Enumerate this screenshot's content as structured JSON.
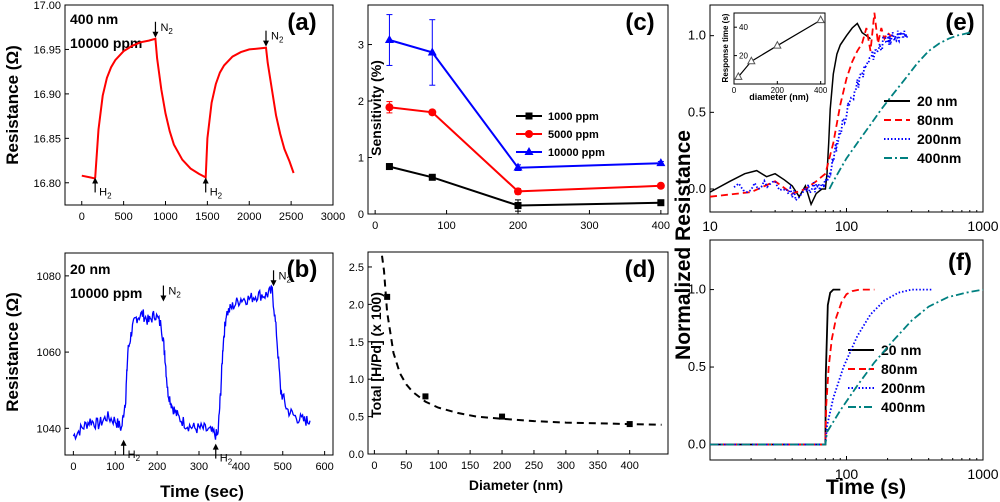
{
  "figure_description": "Six-panel figure (a)-(f): Pd film resistance transients, sensitivity, hydrogen uptake and response-time analysis",
  "chart_data": [
    {
      "panel": "(a)",
      "type": "line",
      "ylabel": "Resistance (Ω)",
      "xlabel": "",
      "xlim": [
        -200,
        3000
      ],
      "ylim": [
        16.775,
        17.0
      ],
      "xticks": [
        0,
        500,
        1000,
        1500,
        2000,
        2500,
        3000
      ],
      "yticks": [
        16.8,
        16.85,
        16.9,
        16.95,
        17.0
      ],
      "ytick_labels": [
        "16.80",
        "16.85",
        "16.90",
        "16.95",
        "17.00"
      ],
      "annotations": [
        "400 nm",
        "10000 ppm"
      ],
      "markers": [
        {
          "label": "H",
          "sub": "2",
          "x": 160,
          "y": 16.806,
          "dir": "up"
        },
        {
          "label": "N",
          "sub": "2",
          "x": 880,
          "y": 16.962,
          "dir": "down"
        },
        {
          "label": "H",
          "sub": "2",
          "x": 1480,
          "y": 16.806,
          "dir": "up"
        },
        {
          "label": "N",
          "sub": "2",
          "x": 2200,
          "y": 16.952,
          "dir": "down"
        }
      ],
      "series": [
        {
          "name": "400 nm, 10000 ppm",
          "color": "#ff0000",
          "x": [
            0,
            100,
            150,
            160,
            200,
            250,
            300,
            350,
            400,
            500,
            600,
            700,
            800,
            880,
            900,
            950,
            1000,
            1050,
            1100,
            1200,
            1300,
            1400,
            1480,
            1500,
            1550,
            1600,
            1650,
            1700,
            1800,
            1900,
            2000,
            2100,
            2200,
            2220,
            2270,
            2320,
            2370,
            2420,
            2480,
            2530
          ],
          "y": [
            16.808,
            16.806,
            16.805,
            16.806,
            16.86,
            16.898,
            16.918,
            16.93,
            16.938,
            16.948,
            16.954,
            16.958,
            16.96,
            16.962,
            16.94,
            16.905,
            16.878,
            16.858,
            16.843,
            16.826,
            16.816,
            16.81,
            16.806,
            16.85,
            16.89,
            16.911,
            16.924,
            16.932,
            16.942,
            16.947,
            16.95,
            16.951,
            16.952,
            16.935,
            16.905,
            16.876,
            16.855,
            16.838,
            16.824,
            16.811
          ]
        }
      ]
    },
    {
      "panel": "(b)",
      "type": "line",
      "ylabel": "Resistance (Ω)",
      "xlabel": "Time (sec)",
      "xlim": [
        -20,
        620
      ],
      "ylim": [
        1033,
        1086
      ],
      "xticks": [
        0,
        100,
        200,
        300,
        400,
        500,
        600
      ],
      "yticks": [
        1040,
        1060,
        1080
      ],
      "annotations": [
        "20 nm",
        "10000 ppm"
      ],
      "markers": [
        {
          "label": "H",
          "sub": "2",
          "x": 120,
          "y": 1037,
          "dir": "up"
        },
        {
          "label": "N",
          "sub": "2",
          "x": 215,
          "y": 1073,
          "dir": "down"
        },
        {
          "label": "H",
          "sub": "2",
          "x": 340,
          "y": 1036,
          "dir": "up"
        },
        {
          "label": "N",
          "sub": "2",
          "x": 478,
          "y": 1077,
          "dir": "down"
        }
      ],
      "series": [
        {
          "name": "20 nm, 10000 ppm",
          "color": "#0000ff",
          "x": [
            0,
            20,
            40,
            60,
            80,
            100,
            115,
            125,
            130,
            140,
            150,
            165,
            180,
            195,
            210,
            218,
            225,
            235,
            250,
            270,
            290,
            310,
            330,
            345,
            352,
            358,
            365,
            380,
            400,
            420,
            440,
            460,
            475,
            485,
            495,
            510,
            530,
            550,
            565
          ],
          "y": [
            1038,
            1040,
            1042,
            1041,
            1043,
            1042,
            1040,
            1048,
            1060,
            1066,
            1069,
            1070,
            1068,
            1070,
            1067,
            1060,
            1050,
            1046,
            1043,
            1041,
            1040,
            1040,
            1039,
            1038,
            1050,
            1063,
            1070,
            1072,
            1074,
            1074,
            1075,
            1075,
            1076,
            1065,
            1050,
            1045,
            1043,
            1042,
            1042
          ]
        }
      ]
    },
    {
      "panel": "(c)",
      "type": "line",
      "ylabel": "Sensitivity (%)",
      "xlabel": "",
      "xlim": [
        -10,
        410
      ],
      "ylim": [
        0,
        3.7
      ],
      "xticks": [
        0,
        100,
        200,
        300,
        400
      ],
      "yticks": [
        0,
        1,
        2,
        3
      ],
      "series": [
        {
          "name": "1000 ppm",
          "color": "#000000",
          "marker": "square",
          "x": [
            20,
            80,
            200,
            400
          ],
          "y": [
            0.84,
            0.65,
            0.15,
            0.2
          ],
          "err": [
            0.05,
            0.04,
            0.1,
            0.02
          ]
        },
        {
          "name": "5000 ppm",
          "color": "#ff0000",
          "marker": "circle",
          "x": [
            20,
            80,
            200,
            400
          ],
          "y": [
            1.89,
            1.8,
            0.4,
            0.5
          ],
          "err": [
            0.1,
            0.04,
            0.05,
            0.02
          ]
        },
        {
          "name": "10000 ppm",
          "color": "#0000ff",
          "marker": "triangle",
          "x": [
            20,
            80,
            200,
            400
          ],
          "y": [
            3.08,
            2.86,
            0.82,
            0.9
          ],
          "err": [
            0.45,
            0.58,
            0.05,
            0.03
          ]
        }
      ]
    },
    {
      "panel": "(d)",
      "type": "scatter",
      "ylabel": "Total [H/Pd] (x 100)",
      "xlabel": "Diameter (nm)",
      "xlim": [
        -10,
        460
      ],
      "ylim": [
        0,
        2.7
      ],
      "xticks": [
        0,
        50,
        100,
        150,
        200,
        250,
        300,
        350,
        400
      ],
      "yticks": [
        0.0,
        0.5,
        1.0,
        1.5,
        2.0,
        2.5
      ],
      "ytick_labels": [
        "0.0",
        "0.5",
        "1.0",
        "1.5",
        "2.0",
        "2.5"
      ],
      "points": {
        "x": [
          20,
          80,
          200,
          400
        ],
        "y": [
          2.1,
          0.77,
          0.5,
          0.4
        ]
      },
      "fit_curve": {
        "x": [
          12,
          15,
          20,
          30,
          40,
          50,
          60,
          80,
          100,
          130,
          160,
          200,
          250,
          300,
          350,
          400,
          450
        ],
        "y": [
          2.65,
          2.45,
          1.9,
          1.35,
          1.08,
          0.93,
          0.83,
          0.7,
          0.62,
          0.55,
          0.5,
          0.47,
          0.44,
          0.42,
          0.41,
          0.4,
          0.39
        ]
      }
    },
    {
      "panel": "(e)",
      "type": "line",
      "ylabel": "Normalized Resistance",
      "xlabel": "",
      "xscale": "log",
      "xlim": [
        10,
        1000
      ],
      "ylim": [
        -0.15,
        1.2
      ],
      "xticks": [
        10,
        100,
        1000
      ],
      "yticks": [
        0.0,
        0.5,
        1.0
      ],
      "ytick_labels": [
        "0.0",
        "0.5",
        "1.0"
      ],
      "series": [
        {
          "name": "20 nm",
          "color": "#000000",
          "dash": "solid",
          "x": [
            10,
            14,
            18,
            22,
            26,
            30,
            35,
            40,
            45,
            50,
            55,
            60,
            66,
            70,
            72,
            74,
            76,
            80,
            85,
            90,
            100,
            110,
            120,
            130,
            140,
            150
          ],
          "y": [
            -0.02,
            0.05,
            0.1,
            0.12,
            0.08,
            0.1,
            0.06,
            0.02,
            -0.05,
            0.02,
            -0.1,
            -0.03,
            0.0,
            0.0,
            0.1,
            0.3,
            0.52,
            0.75,
            0.88,
            0.94,
            1.0,
            1.05,
            1.08,
            1.02,
            1.0,
            0.98
          ]
        },
        {
          "name": "80nm",
          "color": "#ff0000",
          "dash": "7,4",
          "x": [
            10,
            20,
            30,
            40,
            50,
            60,
            70,
            80,
            90,
            100,
            110,
            120,
            130,
            140,
            150,
            160,
            170,
            180,
            190,
            200,
            210,
            220
          ],
          "y": [
            -0.05,
            -0.02,
            0.05,
            -0.03,
            0.0,
            0.05,
            0.1,
            0.3,
            0.55,
            0.72,
            0.83,
            0.9,
            0.95,
            1.05,
            0.9,
            1.15,
            0.95,
            1.05,
            0.98,
            1.02,
            1.0,
            1.0
          ]
        },
        {
          "name": "200nm",
          "color": "#0000ff",
          "dash": "1.5,2",
          "x": [
            15,
            25,
            35,
            45,
            55,
            65,
            72,
            78,
            85,
            95,
            110,
            130,
            150,
            170,
            190,
            210,
            230,
            250,
            280
          ],
          "y": [
            0.0,
            0.03,
            0.0,
            -0.05,
            0.02,
            0.0,
            0.05,
            0.15,
            0.3,
            0.45,
            0.6,
            0.75,
            0.85,
            0.92,
            0.96,
            0.98,
            1.0,
            1.0,
            1.0
          ]
        },
        {
          "name": "400nm",
          "color": "#008080",
          "dash": "8,3,2,3",
          "x": [
            75,
            80,
            90,
            100,
            120,
            150,
            180,
            220,
            270,
            330,
            400,
            480,
            560,
            640,
            720,
            800
          ],
          "y": [
            0.0,
            0.05,
            0.13,
            0.2,
            0.3,
            0.42,
            0.52,
            0.62,
            0.72,
            0.82,
            0.9,
            0.95,
            0.98,
            1.0,
            1.01,
            1.02
          ]
        }
      ],
      "inset": {
        "type": "line",
        "ylabel": "Response time (s)",
        "xlabel": "diameter (nm)",
        "xlim": [
          0,
          420
        ],
        "ylim": [
          0,
          50
        ],
        "xticks": [
          0,
          200,
          400
        ],
        "yticks": [
          20,
          40
        ],
        "x": [
          20,
          80,
          200,
          400
        ],
        "y": [
          5,
          16,
          27,
          45
        ]
      }
    },
    {
      "panel": "(f)",
      "type": "line",
      "ylabel": "Normalized Resistance",
      "xlabel": "Time (s)",
      "xscale": "log",
      "xlim": [
        10,
        1000
      ],
      "ylim": [
        -0.1,
        1.32
      ],
      "xticks": [
        100,
        1000
      ],
      "yticks": [
        0.0,
        0.5,
        1.0
      ],
      "ytick_labels": [
        "0.0",
        "0.5",
        "1.0"
      ],
      "series": [
        {
          "name": "20 nm",
          "color": "#000000",
          "dash": "solid",
          "x": [
            10,
            70,
            70.5,
            73,
            76,
            80,
            84,
            90
          ],
          "y": [
            0,
            0,
            0.45,
            0.9,
            0.98,
            1.0,
            1.0,
            1.0
          ]
        },
        {
          "name": "80nm",
          "color": "#ff0000",
          "dash": "7,4",
          "x": [
            10,
            70,
            71,
            74,
            78,
            84,
            92,
            100,
            110,
            125,
            140,
            160
          ],
          "y": [
            0,
            0,
            0.25,
            0.5,
            0.68,
            0.82,
            0.92,
            0.97,
            0.99,
            1.0,
            1.0,
            1.0
          ]
        },
        {
          "name": "200nm",
          "color": "#0000ff",
          "dash": "1.5,2",
          "x": [
            10,
            70,
            72,
            80,
            95,
            120,
            150,
            190,
            240,
            300,
            360,
            420
          ],
          "y": [
            0,
            0,
            0.12,
            0.3,
            0.5,
            0.7,
            0.84,
            0.93,
            0.98,
            1.0,
            1.0,
            1.0
          ]
        },
        {
          "name": "400nm",
          "color": "#008080",
          "dash": "8,3,2,3",
          "x": [
            10,
            70,
            72,
            90,
            120,
            160,
            220,
            300,
            400,
            550,
            750,
            1000
          ],
          "y": [
            0,
            0,
            0.08,
            0.22,
            0.38,
            0.53,
            0.67,
            0.8,
            0.89,
            0.95,
            0.98,
            1.0
          ]
        }
      ]
    }
  ]
}
